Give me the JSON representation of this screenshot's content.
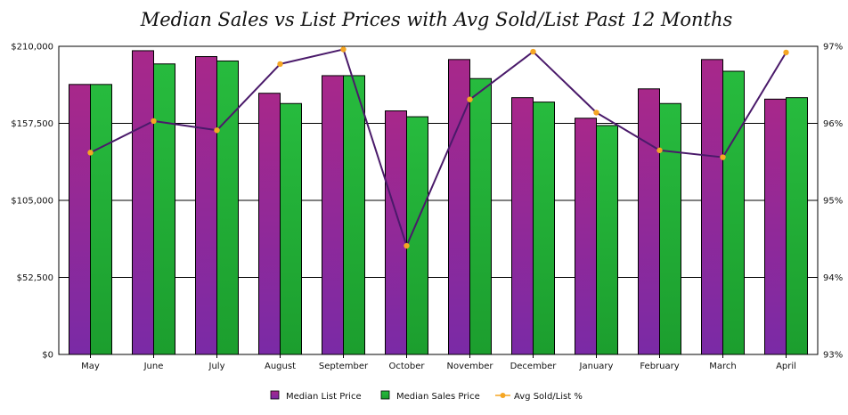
{
  "chart_data": {
    "type": "bar",
    "title": "Median Sales vs List Prices with Avg Sold/List Past 12 Months",
    "categories": [
      "May",
      "June",
      "July",
      "August",
      "September",
      "October",
      "November",
      "December",
      "January",
      "February",
      "March",
      "April"
    ],
    "series": [
      {
        "name": "Median List Price",
        "kind": "bar",
        "axis": "left",
        "color": "#8a2a9e",
        "values": [
          184000,
          207000,
          203000,
          178000,
          190000,
          166000,
          201000,
          175000,
          161000,
          181000,
          201000,
          174000
        ]
      },
      {
        "name": "Median Sales Price",
        "kind": "bar",
        "axis": "left",
        "color": "#22b33a",
        "values": [
          184000,
          198000,
          200000,
          171000,
          190000,
          162000,
          188000,
          172000,
          156000,
          171000,
          193000,
          175000
        ]
      },
      {
        "name": "Avg Sold/List %",
        "kind": "line",
        "axis": "right",
        "color": "#4a1a6a",
        "marker_color": "#f5a623",
        "values": [
          95.62,
          96.03,
          95.91,
          96.77,
          96.96,
          94.41,
          96.31,
          96.93,
          96.14,
          95.65,
          95.56,
          96.92
        ]
      }
    ],
    "y_left": {
      "ylim": [
        0,
        210000
      ],
      "ticks": [
        "$0",
        "$52,500",
        "$105,000",
        "$157,500",
        "$210,000"
      ]
    },
    "y_right": {
      "ylim": [
        93,
        97
      ],
      "ticks": [
        "93%",
        "94%",
        "95%",
        "96%",
        "97%"
      ]
    },
    "grid": true,
    "legend_position": "bottom"
  }
}
